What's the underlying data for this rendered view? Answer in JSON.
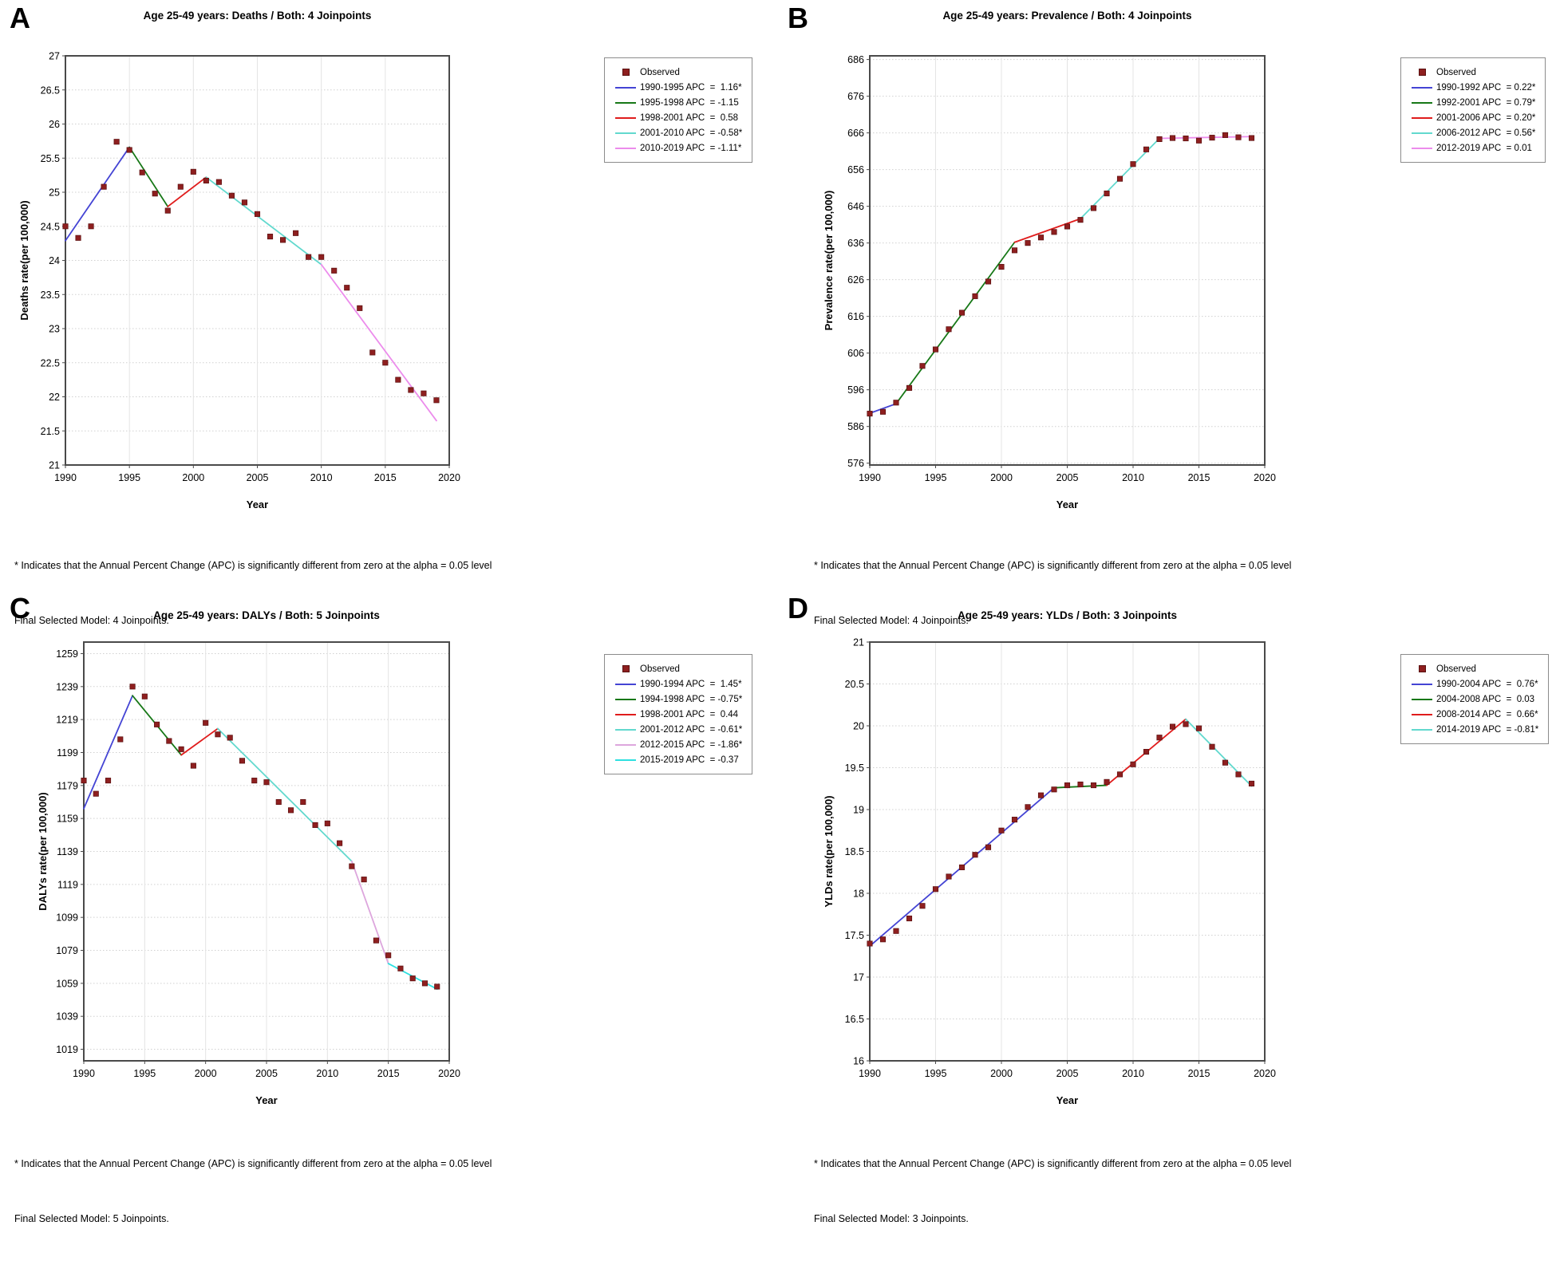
{
  "figure": {
    "background": "#ffffff",
    "observed_marker_color": "#8e1f1f",
    "axis_border_color": "#4a4a4a"
  },
  "chart_data": [
    {
      "letter": "A",
      "type": "line",
      "title": "Age 25-49 years: Deaths / Both: 4 Joinpoints",
      "xlabel": "Year",
      "ylabel": "Deaths rate(per 100,000)",
      "xlim": [
        1990,
        2020
      ],
      "xticks": [
        1990,
        1995,
        2000,
        2005,
        2010,
        2015,
        2020
      ],
      "ylim": [
        21,
        27
      ],
      "yticks": [
        27,
        26.5,
        26,
        25.5,
        25,
        24.5,
        24,
        23.5,
        23,
        22.5,
        22,
        21.5,
        21
      ],
      "legend_observed_label": "Observed",
      "x": [
        1990,
        1991,
        1992,
        1993,
        1994,
        1995,
        1996,
        1997,
        1998,
        1999,
        2000,
        2001,
        2002,
        2003,
        2004,
        2005,
        2006,
        2007,
        2008,
        2009,
        2010,
        2011,
        2012,
        2013,
        2014,
        2015,
        2016,
        2017,
        2018,
        2019
      ],
      "observed": [
        24.5,
        24.33,
        24.5,
        25.08,
        25.74,
        25.62,
        25.29,
        24.98,
        24.73,
        25.08,
        25.3,
        25.17,
        25.15,
        24.95,
        24.85,
        24.68,
        24.35,
        24.3,
        24.4,
        24.05,
        24.05,
        23.85,
        23.6,
        23.3,
        22.65,
        22.5,
        22.25,
        22.1,
        22.05,
        21.95
      ],
      "segments": [
        {
          "label": "1990-1995 APC  =  1.16*",
          "color": "#4444d4",
          "x1": 1990,
          "y1": 24.29,
          "x2": 1995,
          "y2": 25.66
        },
        {
          "label": "1995-1998 APC  = -1.15",
          "color": "#177817",
          "x1": 1995,
          "y1": 25.66,
          "x2": 1998,
          "y2": 24.79
        },
        {
          "label": "1998-2001 APC  =  0.58",
          "color": "#e01c1c",
          "x1": 1998,
          "y1": 24.79,
          "x2": 2001,
          "y2": 25.22
        },
        {
          "label": "2001-2010 APC  = -0.58*",
          "color": "#62d9ce",
          "x1": 2001,
          "y1": 25.22,
          "x2": 2010,
          "y2": 23.94
        },
        {
          "label": "2010-2019 APC  = -1.11*",
          "color": "#ec8cec",
          "x1": 2010,
          "y1": 23.94,
          "x2": 2019,
          "y2": 21.65
        }
      ],
      "footnotes": [
        "* Indicates that the Annual Percent Change (APC) is significantly different from zero at the alpha = 0.05 level",
        "Final Selected Model: 4 Joinpoints."
      ]
    },
    {
      "letter": "B",
      "type": "line",
      "title": "Age 25-49 years: Prevalence / Both: 4 Joinpoints",
      "xlabel": "Year",
      "ylabel": "Prevalence rate(per 100,000)",
      "xlim": [
        1990,
        2020
      ],
      "xticks": [
        1990,
        1995,
        2000,
        2005,
        2010,
        2015,
        2020
      ],
      "ylim": [
        575.5,
        687
      ],
      "yticks": [
        686,
        676,
        666,
        656,
        646,
        636,
        626,
        616,
        606,
        596,
        586,
        576
      ],
      "legend_observed_label": "Observed",
      "x": [
        1990,
        1991,
        1992,
        1993,
        1994,
        1995,
        1996,
        1997,
        1998,
        1999,
        2000,
        2001,
        2002,
        2003,
        2004,
        2005,
        2006,
        2007,
        2008,
        2009,
        2010,
        2011,
        2012,
        2013,
        2014,
        2015,
        2016,
        2017,
        2018,
        2019
      ],
      "observed": [
        589.5,
        590.0,
        592.5,
        596.5,
        602.5,
        607.0,
        612.5,
        617.0,
        621.5,
        625.5,
        629.5,
        634.0,
        636.0,
        637.5,
        639.0,
        640.5,
        642.3,
        645.5,
        649.5,
        653.5,
        657.5,
        661.5,
        664.3,
        664.6,
        664.5,
        663.9,
        664.7,
        665.4,
        664.8,
        664.6
      ],
      "segments": [
        {
          "label": "1990-1992 APC  = 0.22*",
          "color": "#4444d4",
          "x1": 1990,
          "y1": 589.6,
          "x2": 1992,
          "y2": 592.2
        },
        {
          "label": "1992-2001 APC  = 0.79*",
          "color": "#177817",
          "x1": 1992,
          "y1": 592.2,
          "x2": 2001,
          "y2": 636.2
        },
        {
          "label": "2001-2006 APC  = 0.20*",
          "color": "#e01c1c",
          "x1": 2001,
          "y1": 636.2,
          "x2": 2006,
          "y2": 642.6
        },
        {
          "label": "2006-2012 APC  = 0.56*",
          "color": "#62d9ce",
          "x1": 2006,
          "y1": 642.6,
          "x2": 2012,
          "y2": 664.5
        },
        {
          "label": "2012-2019 APC  = 0.01",
          "color": "#ec8cec",
          "x1": 2012,
          "y1": 664.5,
          "x2": 2019,
          "y2": 665.0
        }
      ],
      "footnotes": [
        "* Indicates that the Annual Percent Change (APC) is significantly different from zero at the alpha = 0.05 level",
        "Final Selected Model: 4 Joinpoints."
      ]
    },
    {
      "letter": "C",
      "type": "line",
      "title": "Age 25-49 years: DALYs / Both: 5 Joinpoints",
      "xlabel": "Year",
      "ylabel": "DALYs rate(per 100,000)",
      "xlim": [
        1990,
        2020
      ],
      "xticks": [
        1990,
        1995,
        2000,
        2005,
        2010,
        2015,
        2020
      ],
      "ylim": [
        1012,
        1266
      ],
      "yticks": [
        1259,
        1239,
        1219,
        1199,
        1179,
        1159,
        1139,
        1119,
        1099,
        1079,
        1059,
        1039,
        1019
      ],
      "legend_observed_label": "Observed",
      "x": [
        1990,
        1991,
        1992,
        1993,
        1994,
        1995,
        1996,
        1997,
        1998,
        1999,
        2000,
        2001,
        2002,
        2003,
        2004,
        2005,
        2006,
        2007,
        2008,
        2009,
        2010,
        2011,
        2012,
        2013,
        2014,
        2015,
        2016,
        2017,
        2018,
        2019
      ],
      "observed": [
        1182,
        1174,
        1182,
        1207,
        1239,
        1233,
        1216,
        1206,
        1201,
        1191,
        1217,
        1210,
        1208,
        1194,
        1182,
        1181,
        1169,
        1164,
        1169,
        1155,
        1156,
        1144,
        1130,
        1122,
        1085,
        1076,
        1068,
        1062,
        1059,
        1057
      ],
      "segments": [
        {
          "label": "1990-1994 APC  =  1.45*",
          "color": "#4444d4",
          "x1": 1990,
          "y1": 1165.0,
          "x2": 1994,
          "y2": 1233.5
        },
        {
          "label": "1994-1998 APC  = -0.75*",
          "color": "#177817",
          "x1": 1994,
          "y1": 1233.5,
          "x2": 1998,
          "y2": 1197.5
        },
        {
          "label": "1998-2001 APC  =  0.44",
          "color": "#e01c1c",
          "x1": 1998,
          "y1": 1197.5,
          "x2": 2001,
          "y2": 1213.5
        },
        {
          "label": "2001-2012 APC  = -0.61*",
          "color": "#62d9ce",
          "x1": 2001,
          "y1": 1213.5,
          "x2": 2012,
          "y2": 1133.0
        },
        {
          "label": "2012-2015 APC  = -1.86*",
          "color": "#dda6dd",
          "x1": 2012,
          "y1": 1133.0,
          "x2": 2015,
          "y2": 1071.0
        },
        {
          "label": "2015-2019 APC  = -0.37",
          "color": "#2ee0e0",
          "x1": 2015,
          "y1": 1071.0,
          "x2": 2019,
          "y2": 1055.5
        }
      ],
      "footnotes": [
        "* Indicates that the Annual Percent Change (APC) is significantly different from zero at the alpha = 0.05 level",
        "Final Selected Model: 5 Joinpoints."
      ]
    },
    {
      "letter": "D",
      "type": "line",
      "title": "Age 25-49 years: YLDs / Both: 3 Joinpoints",
      "xlabel": "Year",
      "ylabel": "YLDs rate(per 100,000)",
      "xlim": [
        1990,
        2020
      ],
      "xticks": [
        1990,
        1995,
        2000,
        2005,
        2010,
        2015,
        2020
      ],
      "ylim": [
        16,
        21
      ],
      "yticks": [
        21,
        20.5,
        20,
        19.5,
        19,
        18.5,
        18,
        17.5,
        17,
        16.5,
        16
      ],
      "legend_observed_label": "Observed",
      "x": [
        1990,
        1991,
        1992,
        1993,
        1994,
        1995,
        1996,
        1997,
        1998,
        1999,
        2000,
        2001,
        2002,
        2003,
        2004,
        2005,
        2006,
        2007,
        2008,
        2009,
        2010,
        2011,
        2012,
        2013,
        2014,
        2015,
        2016,
        2017,
        2018,
        2019
      ],
      "observed": [
        17.4,
        17.45,
        17.55,
        17.7,
        17.85,
        18.05,
        18.2,
        18.31,
        18.46,
        18.55,
        18.75,
        18.88,
        19.03,
        19.17,
        19.24,
        19.29,
        19.3,
        19.29,
        19.33,
        19.42,
        19.54,
        19.69,
        19.86,
        19.99,
        20.02,
        19.97,
        19.75,
        19.56,
        19.42,
        19.31
      ],
      "segments": [
        {
          "label": "1990-2004 APC  =  0.76*",
          "color": "#4444d4",
          "x1": 1990,
          "y1": 17.37,
          "x2": 2004,
          "y2": 19.26
        },
        {
          "label": "2004-2008 APC  =  0.03",
          "color": "#177817",
          "x1": 2004,
          "y1": 19.26,
          "x2": 2008,
          "y2": 19.29
        },
        {
          "label": "2008-2014 APC  =  0.66*",
          "color": "#e01c1c",
          "x1": 2008,
          "y1": 19.29,
          "x2": 2014,
          "y2": 20.08
        },
        {
          "label": "2014-2019 APC  = -0.81*",
          "color": "#62d9ce",
          "x1": 2014,
          "y1": 20.08,
          "x2": 2019,
          "y2": 19.28
        }
      ],
      "footnotes": [
        "* Indicates that the Annual Percent Change (APC) is significantly different from zero at the alpha = 0.05 level",
        "Final Selected Model: 3 Joinpoints."
      ]
    }
  ]
}
